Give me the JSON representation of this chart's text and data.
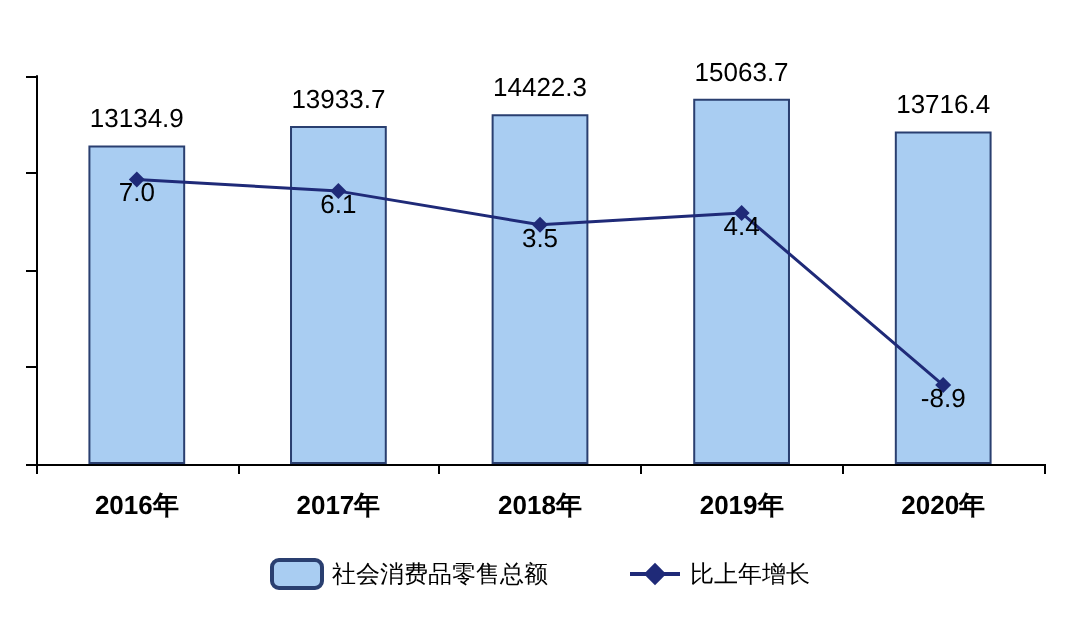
{
  "chart_data": {
    "type": "bar",
    "categories": [
      "2016年",
      "2017年",
      "2018年",
      "2019年",
      "2020年"
    ],
    "series": [
      {
        "name": "社会消费品零售总额",
        "color": "#a9cdf2",
        "values": [
          13134.9,
          13933.7,
          14422.3,
          15063.7,
          13716.4
        ]
      },
      {
        "name": "比上年增长",
        "type": "line",
        "axis": "y2",
        "color": "#1f2a78",
        "values": [
          7.0,
          6.1,
          3.5,
          4.4,
          -8.9
        ],
        "value_labels": [
          "7.0",
          "6.1",
          "3.5",
          "4.4",
          "-8.9"
        ],
        "marker": "diamond"
      }
    ],
    "ylim": [
      0,
      16000
    ],
    "yticks": [
      0,
      4000,
      8000,
      12000,
      16000
    ],
    "y2lim": [
      -15,
      15
    ],
    "tick_labels": "x",
    "data_labels": true,
    "legend": "bottom",
    "grid": false
  }
}
